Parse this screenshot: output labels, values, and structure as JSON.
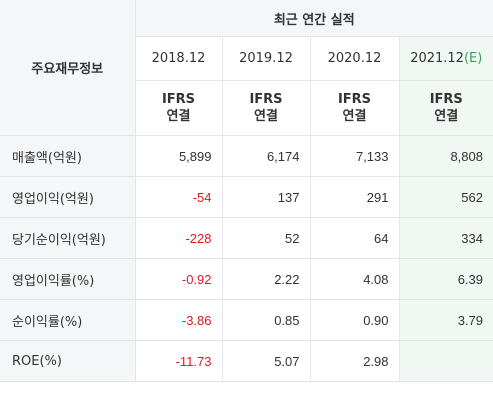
{
  "table": {
    "corner_label": "주요재무정보",
    "section_title": "최근 연간 실적",
    "periods": [
      {
        "label": "2018.12",
        "estimate": false,
        "mark": ""
      },
      {
        "label": "2019.12",
        "estimate": false,
        "mark": ""
      },
      {
        "label": "2020.12",
        "estimate": false,
        "mark": ""
      },
      {
        "label": "2021.12",
        "estimate": true,
        "mark": "(E)"
      }
    ],
    "standards": [
      {
        "line1": "IFRS",
        "line2": "연결"
      },
      {
        "line1": "IFRS",
        "line2": "연결"
      },
      {
        "line1": "IFRS",
        "line2": "연결"
      },
      {
        "line1": "IFRS",
        "line2": "연결"
      }
    ],
    "rows": [
      {
        "label": "매출액(억원)",
        "values": [
          "5,899",
          "6,174",
          "7,133",
          "8,808"
        ]
      },
      {
        "label": "영업이익(억원)",
        "values": [
          "-54",
          "137",
          "291",
          "562"
        ]
      },
      {
        "label": "당기순이익(억원)",
        "values": [
          "-228",
          "52",
          "64",
          "334"
        ]
      },
      {
        "label": "영업이익률(%)",
        "values": [
          "-0.92",
          "2.22",
          "4.08",
          "6.39"
        ]
      },
      {
        "label": "순이익률(%)",
        "values": [
          "-3.86",
          "0.85",
          "0.90",
          "3.79"
        ]
      },
      {
        "label": "ROE(%)",
        "values": [
          "-11.73",
          "5.07",
          "2.98",
          ""
        ]
      }
    ]
  },
  "colors": {
    "negative": "#e0181e",
    "ifrs": "#f26b1d",
    "estimate_bg": "#f1f8f3",
    "estimate_mark": "#3aa05a",
    "header_bg": "#f5f6f8",
    "border": "#e3e5e8"
  }
}
